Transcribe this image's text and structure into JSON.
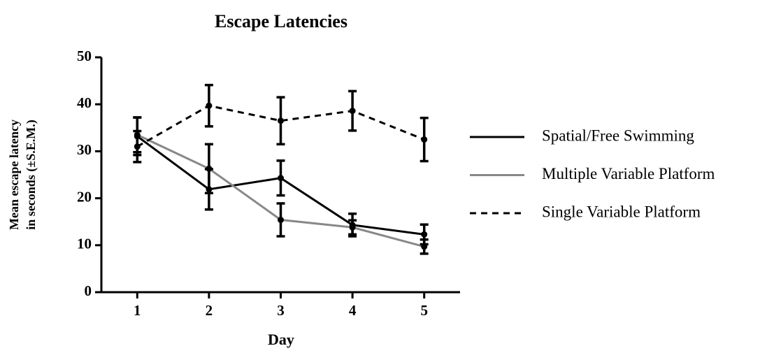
{
  "chart_data": {
    "type": "line",
    "title": "Escape Latencies",
    "xlabel": "Day",
    "ylabel": [
      "Mean escape latency",
      "in seconds (±S.E.M.)"
    ],
    "x": [
      1,
      2,
      3,
      4,
      5
    ],
    "xlim": [
      0.5,
      5.5
    ],
    "xticks": [
      1,
      2,
      3,
      4,
      5
    ],
    "ylim": [
      0,
      50
    ],
    "yticks": [
      0,
      10,
      20,
      30,
      40,
      50
    ],
    "series": [
      {
        "name": "Spatial/Free Swimming",
        "color": "#000000",
        "dash": "solid",
        "values": [
          33.2,
          21.9,
          24.3,
          14.3,
          12.3
        ],
        "errors": [
          4.0,
          4.3,
          3.7,
          2.4,
          2.1
        ]
      },
      {
        "name": "Multiple Variable Platform",
        "color": "#888888",
        "dash": "solid",
        "values": [
          33.5,
          26.3,
          15.4,
          13.8,
          9.7
        ],
        "errors": [
          3.7,
          5.2,
          3.5,
          1.5,
          1.5
        ]
      },
      {
        "name": "Single Variable Platform",
        "color": "#000000",
        "dash": "dashed",
        "values": [
          31.0,
          39.7,
          36.5,
          38.6,
          32.5
        ],
        "errors": [
          3.3,
          4.4,
          5.0,
          4.2,
          4.6
        ]
      }
    ]
  }
}
